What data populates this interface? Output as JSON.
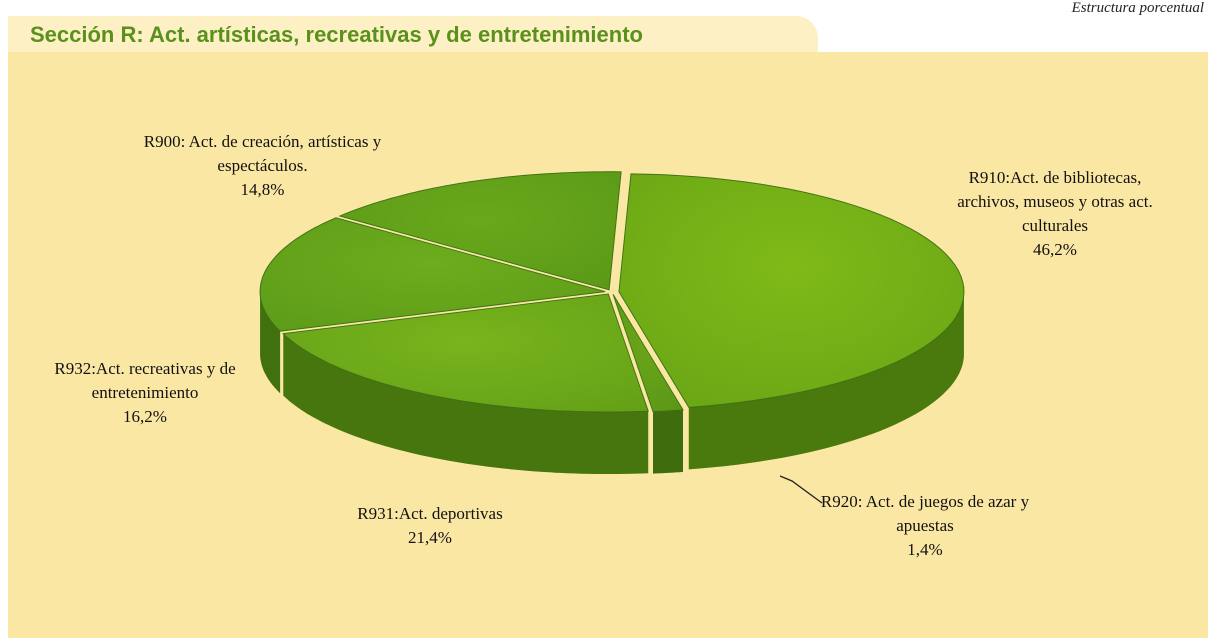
{
  "header": {
    "note": "Estructura porcentual"
  },
  "chart_data": {
    "type": "pie",
    "title": "Sección R: Act. artísticas, recreativas y de entretenimiento",
    "categories": [
      "R910:Act. de bibliotecas, archivos, museos y otras act. culturales",
      "R920: Act. de juegos de azar y apuestas",
      "R931:Act. deportivas",
      "R932:Act. recreativas y de entretenimiento",
      "R900: Act. de creación, artísticas y espectáculos."
    ],
    "values": [
      46.2,
      1.4,
      21.4,
      16.2,
      14.8
    ],
    "value_labels": [
      "46,2%",
      "1,4%",
      "21,4%",
      "16,2%",
      "14,8%"
    ],
    "colors": [
      "#7fba18",
      "#6aa51a",
      "#78b41c",
      "#6dac1d",
      "#69a81b"
    ]
  }
}
